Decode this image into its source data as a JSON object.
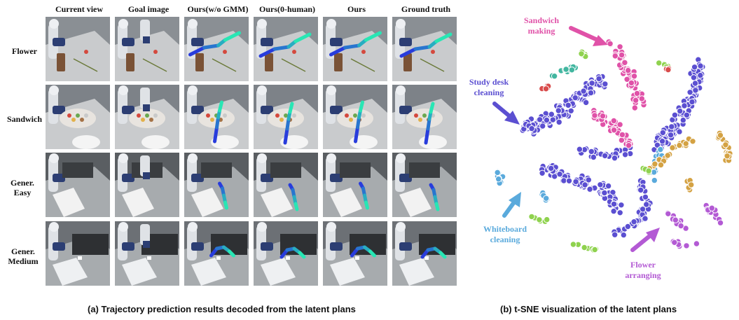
{
  "figure_a": {
    "caption": "(a) Trajectory prediction results decoded from the latent plans",
    "columns": [
      "Current view",
      "Goal image",
      "Ours(w/o GMM)",
      "Ours(0-human)",
      "Ours",
      "Ground truth"
    ],
    "rows": [
      "Flower",
      "Sandwich",
      "Gener. Easy",
      "Gener. Medium"
    ]
  },
  "figure_b": {
    "caption": "(b) t-SNE visualization of the latent plans",
    "clusters": [
      {
        "label": "Sandwich making",
        "color": "#e052a8"
      },
      {
        "label": "Study desk cleaning",
        "color": "#5b4fd1"
      },
      {
        "label": "Whiteboard cleaning",
        "color": "#5aaadc"
      },
      {
        "label": "Flower arranging",
        "color": "#b35ad4"
      }
    ],
    "other_colors": [
      "#d4a243",
      "#42b6a0",
      "#d94c4c",
      "#8fd24e"
    ]
  }
}
